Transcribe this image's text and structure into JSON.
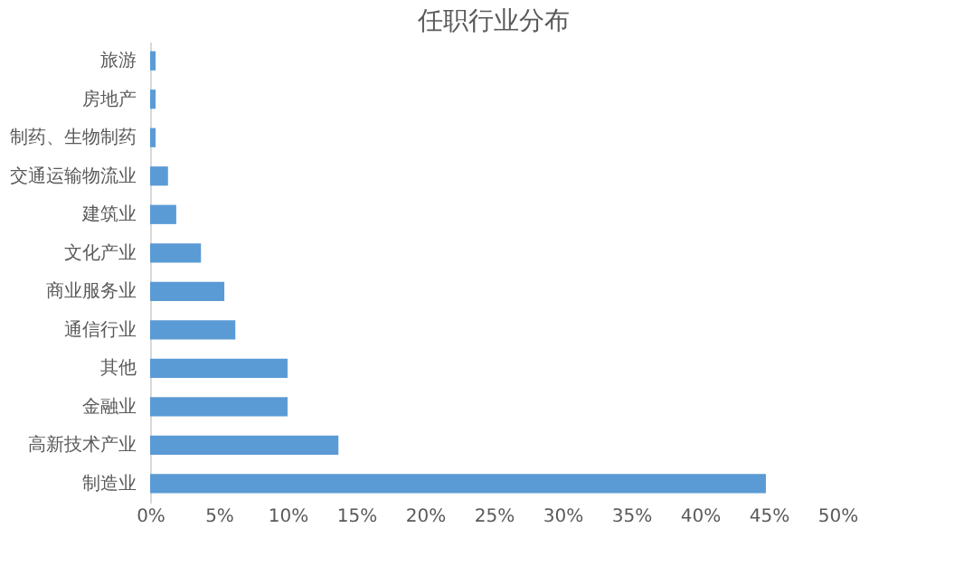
{
  "chart_data": {
    "type": "bar",
    "orientation": "horizontal",
    "title": "任职行业分布",
    "categories": [
      "旅游",
      "房地产",
      "制药、生物制药",
      "交通运输物流业",
      "建筑业",
      "文化产业",
      "商业服务业",
      "通信行业",
      "其他",
      "金融业",
      "高新技术产业",
      "制造业"
    ],
    "values": [
      0.4,
      0.4,
      0.4,
      1.3,
      1.9,
      3.7,
      5.4,
      6.2,
      10.0,
      10.0,
      13.7,
      44.8
    ],
    "color": "#5b9bd5",
    "xlim": [
      0,
      50
    ],
    "xticks": [
      {
        "value": 0,
        "label": "0%"
      },
      {
        "value": 5,
        "label": "5%"
      },
      {
        "value": 10,
        "label": "10%"
      },
      {
        "value": 15,
        "label": "15%"
      },
      {
        "value": 20,
        "label": "20%"
      },
      {
        "value": 25,
        "label": "25%"
      },
      {
        "value": 30,
        "label": "30%"
      },
      {
        "value": 35,
        "label": "35%"
      },
      {
        "value": 40,
        "label": "40%"
      },
      {
        "value": 45,
        "label": "45%"
      },
      {
        "value": 50,
        "label": "50%"
      }
    ],
    "grid": false
  }
}
